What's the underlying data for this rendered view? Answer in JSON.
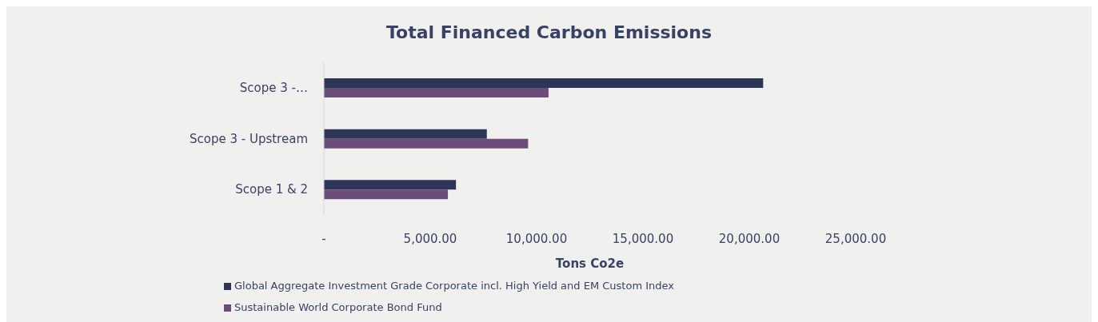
{
  "chart_data": {
    "type": "bar",
    "orientation": "horizontal",
    "title": "Total Financed Carbon Emissions",
    "xlabel": "Tons Co2e",
    "categories": [
      "Scope 3 -…",
      "Scope 3 - Upstream",
      "Scope 1 & 2"
    ],
    "series": [
      {
        "name": "Global Aggregate Investment Grade Corporate incl. High Yield and EM Custom Index",
        "color": "#2e3657",
        "values": [
          20650,
          7660,
          6210
        ]
      },
      {
        "name": "Sustainable World Corporate Bond Fund",
        "color": "#6b4c7b",
        "values": [
          10560,
          9600,
          5830
        ]
      }
    ],
    "xlim": [
      0,
      25000
    ],
    "xticks": [
      {
        "value": 0,
        "label": "-"
      },
      {
        "value": 5000,
        "label": "5,000.00"
      },
      {
        "value": 10000,
        "label": "10,000.00"
      },
      {
        "value": 15000,
        "label": "15,000.00"
      },
      {
        "value": 20000,
        "label": "20,000.00"
      },
      {
        "value": 25000,
        "label": "25,000.00"
      }
    ],
    "grid": false,
    "legend": "bottom"
  }
}
